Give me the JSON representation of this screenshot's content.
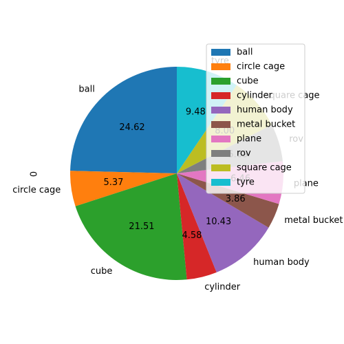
{
  "chart_data": {
    "type": "pie",
    "ylabel": "0",
    "legend_position": "upper-right",
    "slices": [
      {
        "label": "ball",
        "value": 24.62,
        "display": "24.62",
        "color": "#1f77b4"
      },
      {
        "label": "circle cage",
        "value": 5.37,
        "display": "5.37",
        "color": "#ff7f0e"
      },
      {
        "label": "cube",
        "value": 21.51,
        "display": "21.51",
        "color": "#2ca02c"
      },
      {
        "label": "cylinder",
        "value": 4.58,
        "display": "4.58",
        "color": "#d62728"
      },
      {
        "label": "human body",
        "value": 10.43,
        "display": "10.43",
        "color": "#9467bd"
      },
      {
        "label": "metal bucket",
        "value": 3.86,
        "display": "3.86",
        "color": "#8c564b"
      },
      {
        "label": "plane",
        "value": 6.46,
        "display": "6.46",
        "color": "#e377c2"
      },
      {
        "label": "rov",
        "value": 5.69,
        "display": "5.69",
        "color": "#7f7f7f"
      },
      {
        "label": "square cage",
        "value": 8.0,
        "display": "8.00",
        "color": "#bcbd22"
      },
      {
        "label": "tyre",
        "value": 9.48,
        "display": "9.48",
        "color": "#17becf"
      }
    ]
  }
}
